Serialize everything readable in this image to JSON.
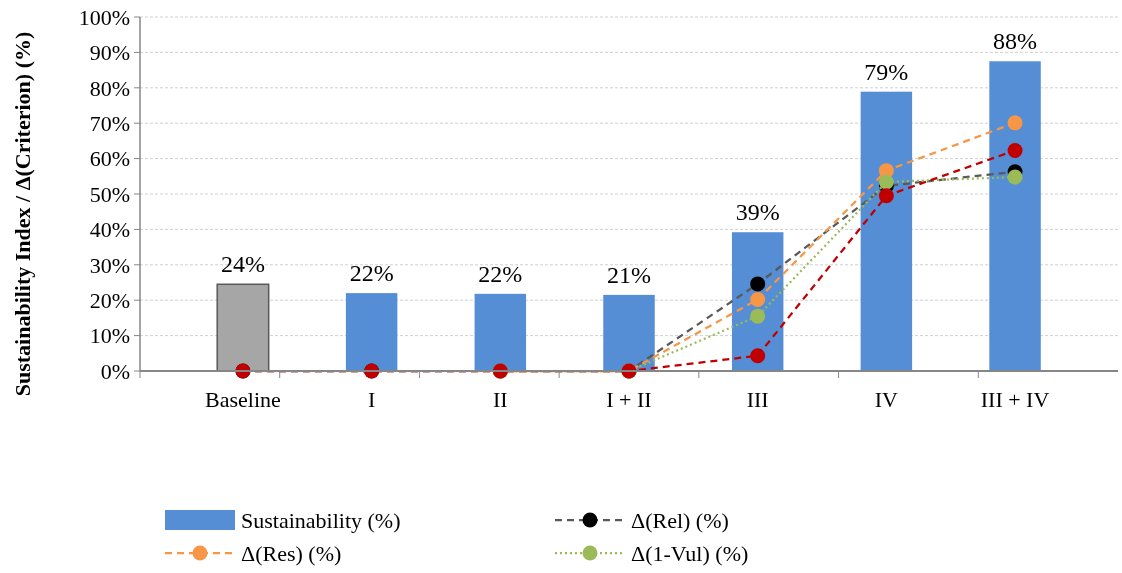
{
  "chart_data": {
    "type": "bar",
    "ylabel": "Sustainability Index / Δ(Criterion) (%)",
    "categories": [
      "Baseline",
      "I",
      "II",
      "I + II",
      "III",
      "IV",
      "III + IV"
    ],
    "ylim": [
      0,
      100
    ],
    "yticks": [
      {
        "value": 0,
        "label": "0%"
      },
      {
        "value": 10,
        "label": "10%"
      },
      {
        "value": 20,
        "label": "20%"
      },
      {
        "value": 30,
        "label": "30%"
      },
      {
        "value": 40,
        "label": "40%"
      },
      {
        "value": 50,
        "label": "50%"
      },
      {
        "value": 60,
        "label": "60%"
      },
      {
        "value": 70,
        "label": "70%"
      },
      {
        "value": 80,
        "label": "80%"
      },
      {
        "value": 90,
        "label": "90%"
      },
      {
        "value": 100,
        "label": "100%"
      }
    ],
    "grid": "y",
    "legend": "bottom",
    "series": [
      {
        "name": "Sustainability (%)",
        "color": "#558ed5",
        "colors": [
          "#a6a6a6",
          "#558ed5",
          "#558ed5",
          "#558ed5",
          "#558ed5",
          "#558ed5",
          "#558ed5"
        ],
        "values": [
          24.5,
          22,
          21.8,
          21.5,
          39.2,
          78.9,
          87.5
        ],
        "value_labels": [
          "24%",
          "22%",
          "22%",
          "21%",
          "39%",
          "79%",
          "88%"
        ]
      },
      {
        "type": "line",
        "name": "Δ(Rel) (%)",
        "color": "#000000",
        "line_style": "dashed",
        "marker": "circle",
        "values": [
          0,
          0,
          0,
          0,
          24.6,
          52.3,
          56.3
        ]
      },
      {
        "type": "line",
        "name": "Δ(Res) (%)",
        "color": "#f79646",
        "line_style": "dashed",
        "marker": "circle",
        "values": [
          null,
          null,
          0,
          0,
          20.2,
          56.6,
          70.1
        ]
      },
      {
        "type": "line",
        "name": "Δ(1-Vul) (%)",
        "color": "#9bbb59",
        "line_style": "dotted",
        "marker": "circle",
        "values": [
          null,
          null,
          0,
          0,
          15.5,
          53.4,
          54.8
        ]
      },
      {
        "type": "line",
        "color": "#c00000",
        "line_style": "dashed",
        "marker": "circle",
        "values": [
          0,
          0,
          0,
          0,
          4.3,
          49.5,
          62.3
        ]
      }
    ]
  }
}
